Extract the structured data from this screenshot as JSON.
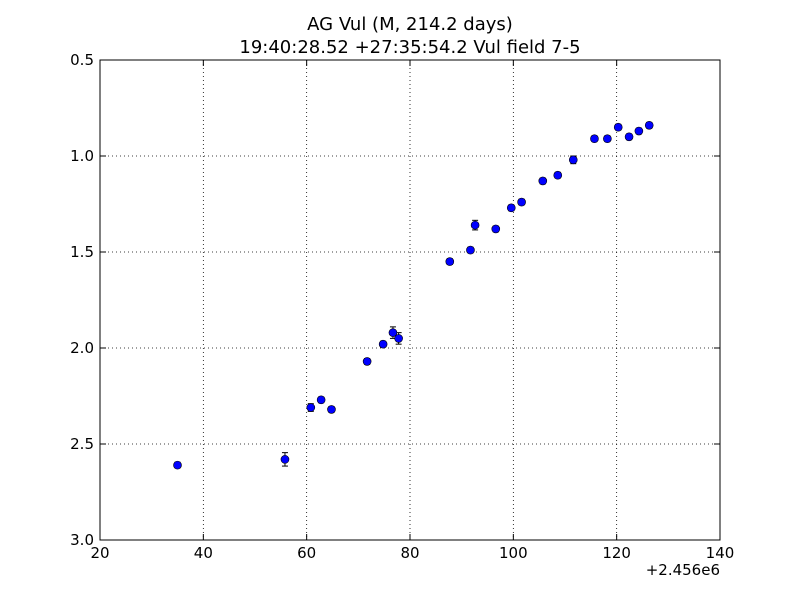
{
  "chart_data": {
    "type": "scatter",
    "title": "AG Vul (M, 214.2 days)",
    "subtitle": "19:40:28.52 +27:35:54.2 Vul field 7-5",
    "xlabel": "",
    "ylabel": "",
    "x_offset_label": "+2.456e6",
    "xlim": [
      20,
      140
    ],
    "ylim": [
      3.0,
      0.5
    ],
    "y_inverted": true,
    "x_ticks": [
      20,
      40,
      60,
      80,
      100,
      120,
      140
    ],
    "x_tick_labels": [
      "20",
      "40",
      "60",
      "80",
      "100",
      "120",
      "140"
    ],
    "y_ticks": [
      0.5,
      1.0,
      1.5,
      2.0,
      2.5,
      3.0
    ],
    "y_tick_labels": [
      "0.5",
      "1.0",
      "1.5",
      "2.0",
      "2.5",
      "3.0"
    ],
    "grid": true,
    "grid_style": "dotted",
    "marker_color": "#0000ff",
    "series": [
      {
        "points": [
          {
            "x": 35.0,
            "y": 2.61,
            "err": 0.015
          },
          {
            "x": 55.8,
            "y": 2.58,
            "err": 0.035
          },
          {
            "x": 60.8,
            "y": 2.31,
            "err": 0.02
          },
          {
            "x": 62.8,
            "y": 2.27,
            "err": 0.015
          },
          {
            "x": 64.8,
            "y": 2.32,
            "err": 0.015
          },
          {
            "x": 71.7,
            "y": 2.07,
            "err": 0.015
          },
          {
            "x": 74.8,
            "y": 1.98,
            "err": 0.015
          },
          {
            "x": 76.7,
            "y": 1.92,
            "err": 0.03
          },
          {
            "x": 77.8,
            "y": 1.95,
            "err": 0.03
          },
          {
            "x": 87.7,
            "y": 1.55,
            "err": 0.015
          },
          {
            "x": 91.7,
            "y": 1.49,
            "err": 0.015
          },
          {
            "x": 92.6,
            "y": 1.36,
            "err": 0.025
          },
          {
            "x": 96.6,
            "y": 1.38,
            "err": 0.015
          },
          {
            "x": 99.6,
            "y": 1.27,
            "err": 0.015
          },
          {
            "x": 101.6,
            "y": 1.24,
            "err": 0.015
          },
          {
            "x": 105.7,
            "y": 1.13,
            "err": 0.015
          },
          {
            "x": 108.6,
            "y": 1.1,
            "err": 0.015
          },
          {
            "x": 111.6,
            "y": 1.02,
            "err": 0.02
          },
          {
            "x": 115.7,
            "y": 0.91,
            "err": 0.015
          },
          {
            "x": 118.2,
            "y": 0.91,
            "err": 0.015
          },
          {
            "x": 120.3,
            "y": 0.85,
            "err": 0.015
          },
          {
            "x": 122.4,
            "y": 0.9,
            "err": 0.015
          },
          {
            "x": 124.3,
            "y": 0.87,
            "err": 0.015
          },
          {
            "x": 126.3,
            "y": 0.84,
            "err": 0.015
          }
        ]
      }
    ]
  }
}
